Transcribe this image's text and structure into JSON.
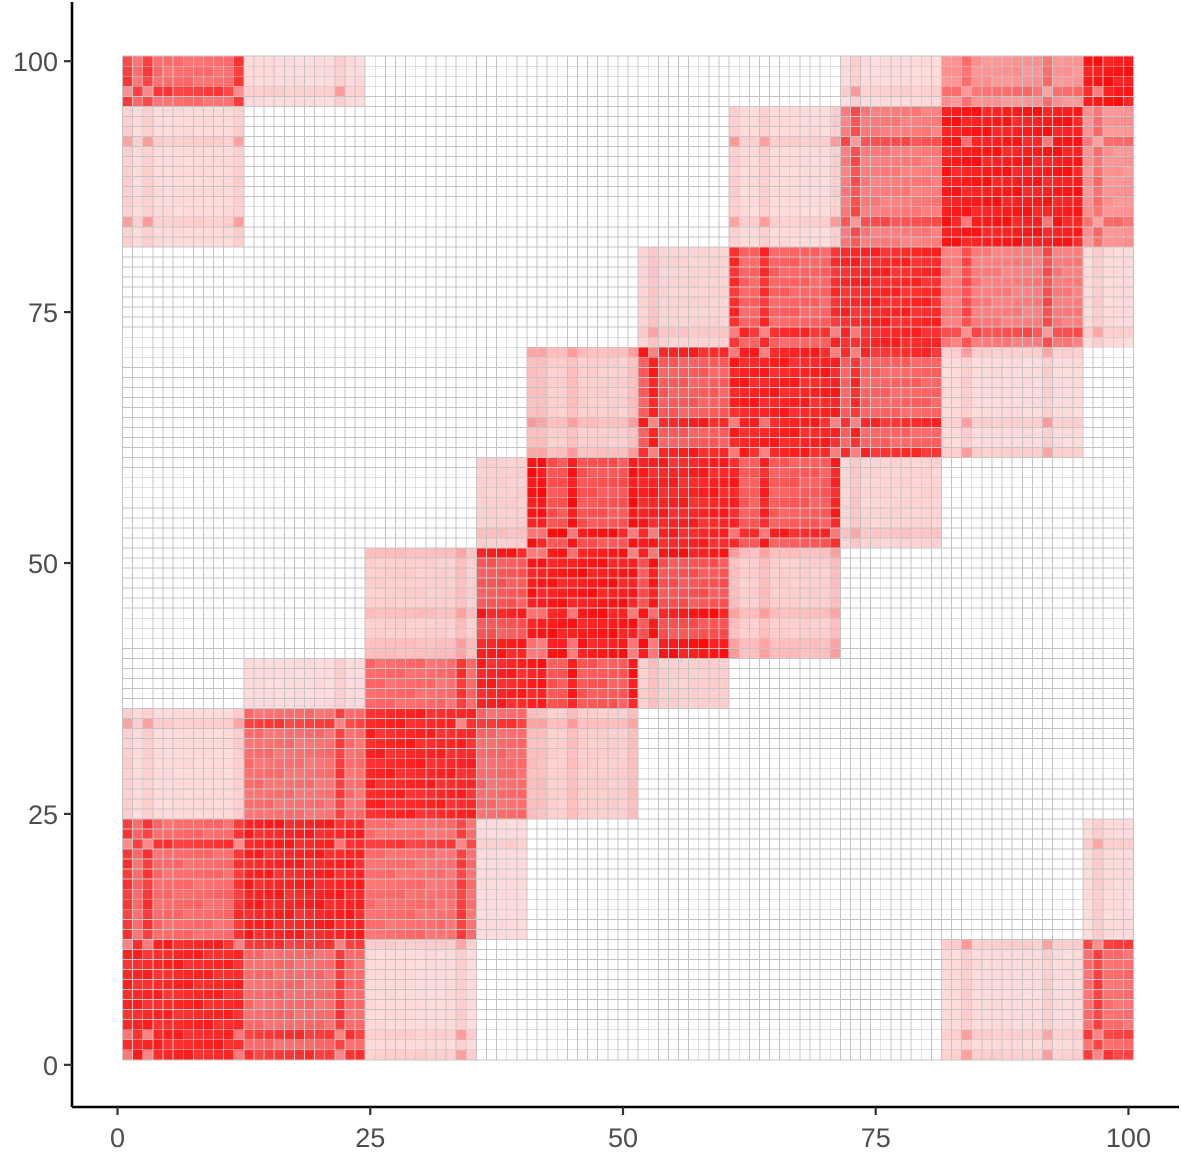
{
  "chart_data": {
    "type": "heatmap",
    "title": "",
    "xlabel": "",
    "ylabel": "",
    "xlim": [
      -4.5,
      105
    ],
    "ylim": [
      -4.2,
      105.5
    ],
    "x_ticks": [
      {
        "value": 0,
        "label": "0"
      },
      {
        "value": 25,
        "label": "25"
      },
      {
        "value": 50,
        "label": "50"
      },
      {
        "value": 75,
        "label": "75"
      },
      {
        "value": 100,
        "label": "100"
      }
    ],
    "y_ticks": [
      {
        "value": 0,
        "label": "0"
      },
      {
        "value": 25,
        "label": "25"
      },
      {
        "value": 50,
        "label": "50"
      },
      {
        "value": 75,
        "label": "75"
      },
      {
        "value": 100,
        "label": "100"
      }
    ],
    "grid": {
      "cells_x": 100,
      "cells_y": 100,
      "x_range": [
        0.5,
        100.5
      ],
      "y_range": [
        0.5,
        100.5
      ],
      "cell_border_color": "#c4c4c4"
    },
    "color_scale": {
      "low": "#ffffff",
      "high": "#ff0000"
    },
    "legend": "none",
    "blocks": [
      {
        "id": 1,
        "range": [
          1,
          12
        ],
        "intensity": 0.9
      },
      {
        "id": 2,
        "range": [
          13,
          24
        ],
        "intensity": 0.92
      },
      {
        "id": 3,
        "range": [
          25,
          35
        ],
        "intensity": 0.9
      },
      {
        "id": 4,
        "range": [
          36,
          45
        ],
        "intensity": 0.92
      },
      {
        "id": 5,
        "range": [
          41,
          55
        ],
        "intensity": 0.95
      },
      {
        "id": 6,
        "range": [
          52,
          62
        ],
        "intensity": 0.92
      },
      {
        "id": 7,
        "range": [
          61,
          72
        ],
        "intensity": 0.92
      },
      {
        "id": 8,
        "range": [
          72,
          81
        ],
        "intensity": 0.9
      },
      {
        "id": 9,
        "range": [
          82,
          95
        ],
        "intensity": 0.95
      },
      {
        "id": 10,
        "range": [
          96,
          100
        ],
        "intensity": 0.95
      }
    ],
    "block_interactions": [
      {
        "a": 1,
        "b": 2,
        "intensity": 0.62
      },
      {
        "a": 1,
        "b": 3,
        "intensity": 0.15
      },
      {
        "a": 2,
        "b": 3,
        "intensity": 0.6
      },
      {
        "a": 2,
        "b": 4,
        "intensity": 0.15
      },
      {
        "a": 3,
        "b": 4,
        "intensity": 0.62
      },
      {
        "a": 3,
        "b": 5,
        "intensity": 0.2
      },
      {
        "a": 4,
        "b": 5,
        "intensity": 0.7
      },
      {
        "a": 4,
        "b": 6,
        "intensity": 0.2
      },
      {
        "a": 5,
        "b": 6,
        "intensity": 0.72
      },
      {
        "a": 5,
        "b": 7,
        "intensity": 0.2
      },
      {
        "a": 6,
        "b": 7,
        "intensity": 0.68
      },
      {
        "a": 6,
        "b": 8,
        "intensity": 0.18
      },
      {
        "a": 7,
        "b": 8,
        "intensity": 0.65
      },
      {
        "a": 7,
        "b": 9,
        "intensity": 0.15
      },
      {
        "a": 8,
        "b": 9,
        "intensity": 0.55
      },
      {
        "a": 8,
        "b": 10,
        "intensity": 0.15
      },
      {
        "a": 9,
        "b": 10,
        "intensity": 0.45
      },
      {
        "a": 1,
        "b": 10,
        "intensity": 0.6
      },
      {
        "a": 1,
        "b": 9,
        "intensity": 0.15
      },
      {
        "a": 2,
        "b": 10,
        "intensity": 0.15
      }
    ],
    "stripe_positions": [
      1,
      3,
      12,
      22,
      34,
      41,
      42,
      45,
      51,
      53,
      61,
      64,
      71,
      73,
      84,
      92,
      97
    ],
    "stripe_intensity": 0.95
  }
}
